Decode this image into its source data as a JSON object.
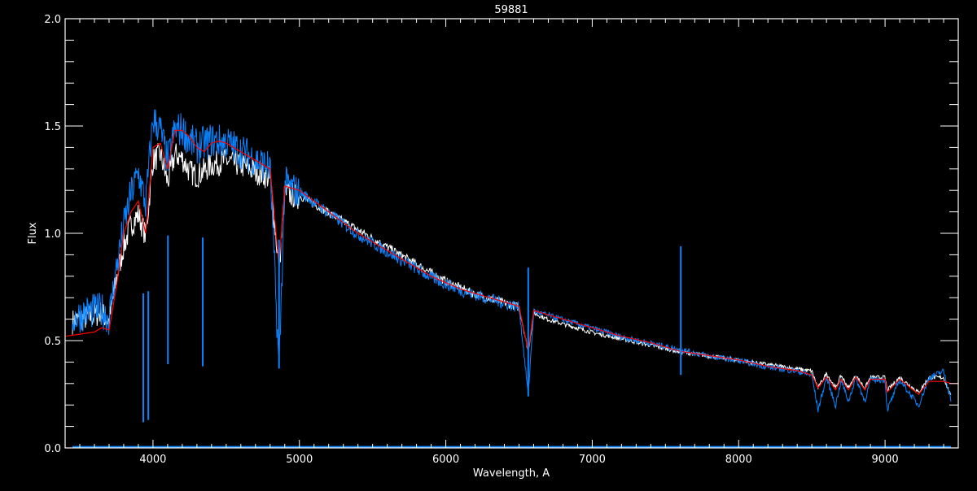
{
  "chart_data": {
    "type": "line",
    "title": "59881",
    "xlabel": "Wavelength, A",
    "ylabel": "Flux",
    "xlim": [
      3400,
      9500
    ],
    "ylim": [
      0.0,
      2.0
    ],
    "xticks": [
      "4000",
      "5000",
      "6000",
      "7000",
      "8000",
      "9000"
    ],
    "yticks": [
      "0.0",
      "0.5",
      "1.0",
      "1.5",
      "2.0"
    ],
    "grid": false,
    "colors": {
      "background": "#000000",
      "axes": "#ffffff",
      "observed": "#ffffff",
      "model": "#0a84ff",
      "smoothed": "#ff0000"
    },
    "series": [
      {
        "color": "#ffffff",
        "x": [
          3450,
          3550,
          3650,
          3700,
          3750,
          3800,
          3850,
          3900,
          3950,
          4000,
          4050,
          4100,
          4150,
          4200,
          4250,
          4300,
          4400,
          4500,
          4600,
          4700,
          4800,
          4861,
          4900,
          5000,
          5100,
          5200,
          5300,
          5400,
          5500,
          5600,
          5700,
          5800,
          5900,
          6000,
          6100,
          6200,
          6300,
          6400,
          6500,
          6563,
          6600,
          6700,
          6800,
          6900,
          7000,
          7200,
          7400,
          7600,
          7800,
          8000,
          8200,
          8400,
          8500,
          8542,
          8600,
          8662,
          8700,
          8750,
          8800,
          8862,
          8900,
          9000,
          9015,
          9100,
          9229,
          9300,
          9400,
          9450
        ],
        "y": [
          0.6,
          0.62,
          0.64,
          0.6,
          0.8,
          0.95,
          1.05,
          1.1,
          1.0,
          1.35,
          1.38,
          1.25,
          1.38,
          1.36,
          1.3,
          1.28,
          1.33,
          1.35,
          1.33,
          1.3,
          1.27,
          0.85,
          1.2,
          1.18,
          1.14,
          1.1,
          1.06,
          1.02,
          0.98,
          0.94,
          0.9,
          0.86,
          0.82,
          0.78,
          0.75,
          0.72,
          0.7,
          0.68,
          0.66,
          0.45,
          0.63,
          0.6,
          0.58,
          0.56,
          0.54,
          0.51,
          0.48,
          0.45,
          0.43,
          0.41,
          0.39,
          0.37,
          0.36,
          0.28,
          0.35,
          0.28,
          0.34,
          0.28,
          0.34,
          0.28,
          0.33,
          0.33,
          0.27,
          0.33,
          0.26,
          0.33,
          0.33,
          0.24
        ]
      },
      {
        "color": "#0a84ff",
        "x": [
          3450,
          3550,
          3650,
          3700,
          3750,
          3800,
          3850,
          3900,
          3950,
          4000,
          4050,
          4100,
          4150,
          4200,
          4250,
          4300,
          4400,
          4500,
          4600,
          4700,
          4800,
          4861,
          4900,
          5000,
          5100,
          5200,
          5300,
          5400,
          5500,
          5600,
          5700,
          5800,
          5900,
          6000,
          6100,
          6200,
          6300,
          6400,
          6500,
          6563,
          6600,
          6700,
          6800,
          6900,
          7000,
          7200,
          7400,
          7600,
          7800,
          8000,
          8200,
          8400,
          8500,
          8542,
          8600,
          8662,
          8700,
          8750,
          8800,
          8862,
          8900,
          9000,
          9015,
          9100,
          9229,
          9300,
          9400,
          9450
        ],
        "y": [
          0.62,
          0.65,
          0.66,
          0.62,
          0.85,
          1.05,
          1.2,
          1.3,
          1.15,
          1.55,
          1.5,
          1.35,
          1.5,
          1.5,
          1.45,
          1.42,
          1.45,
          1.44,
          1.4,
          1.36,
          1.32,
          0.38,
          1.25,
          1.2,
          1.15,
          1.1,
          1.05,
          1.0,
          0.96,
          0.92,
          0.88,
          0.84,
          0.8,
          0.77,
          0.74,
          0.72,
          0.7,
          0.68,
          0.66,
          0.25,
          0.64,
          0.62,
          0.6,
          0.58,
          0.56,
          0.52,
          0.49,
          0.46,
          0.43,
          0.41,
          0.38,
          0.36,
          0.34,
          0.18,
          0.33,
          0.2,
          0.32,
          0.22,
          0.33,
          0.22,
          0.32,
          0.32,
          0.18,
          0.32,
          0.2,
          0.33,
          0.36,
          0.23
        ]
      },
      {
        "color": "#ff0000",
        "x": [
          3400,
          3500,
          3600,
          3650,
          3700,
          3750,
          3800,
          3850,
          3900,
          3950,
          4000,
          4050,
          4100,
          4150,
          4200,
          4250,
          4300,
          4350,
          4400,
          4450,
          4500,
          4600,
          4700,
          4800,
          4861,
          4900,
          5000,
          5100,
          5200,
          5300,
          5400,
          5500,
          5600,
          5700,
          5800,
          5900,
          6000,
          6100,
          6200,
          6300,
          6400,
          6500,
          6563,
          6600,
          6700,
          6800,
          6900,
          7000,
          7200,
          7400,
          7600,
          7800,
          8000,
          8200,
          8400,
          8500,
          8542,
          8600,
          8662,
          8700,
          8750,
          8800,
          8862,
          8900,
          9000,
          9015,
          9100,
          9229,
          9300,
          9400,
          9450,
          9500
        ],
        "y": [
          0.52,
          0.53,
          0.54,
          0.56,
          0.55,
          0.75,
          1.0,
          1.1,
          1.15,
          1.0,
          1.4,
          1.42,
          1.3,
          1.48,
          1.48,
          1.45,
          1.4,
          1.38,
          1.42,
          1.43,
          1.42,
          1.38,
          1.34,
          1.3,
          0.85,
          1.22,
          1.2,
          1.15,
          1.1,
          1.05,
          1.0,
          0.96,
          0.92,
          0.88,
          0.84,
          0.8,
          0.77,
          0.74,
          0.72,
          0.7,
          0.68,
          0.66,
          0.45,
          0.64,
          0.62,
          0.6,
          0.58,
          0.56,
          0.52,
          0.49,
          0.45,
          0.43,
          0.41,
          0.38,
          0.36,
          0.34,
          0.28,
          0.33,
          0.27,
          0.32,
          0.27,
          0.33,
          0.27,
          0.32,
          0.32,
          0.26,
          0.32,
          0.25,
          0.31,
          0.31,
          0.3,
          0.3
        ]
      }
    ],
    "absorption_lines": [
      {
        "x": 3934,
        "y": 0.12
      },
      {
        "x": 3968,
        "y": 0.13
      },
      {
        "x": 4102,
        "y": 0.39
      },
      {
        "x": 4340,
        "y": 0.38
      },
      {
        "x": 4861,
        "y": 0.37
      },
      {
        "x": 6563,
        "y": 0.24
      },
      {
        "x": 7605,
        "y": 0.34
      }
    ]
  }
}
